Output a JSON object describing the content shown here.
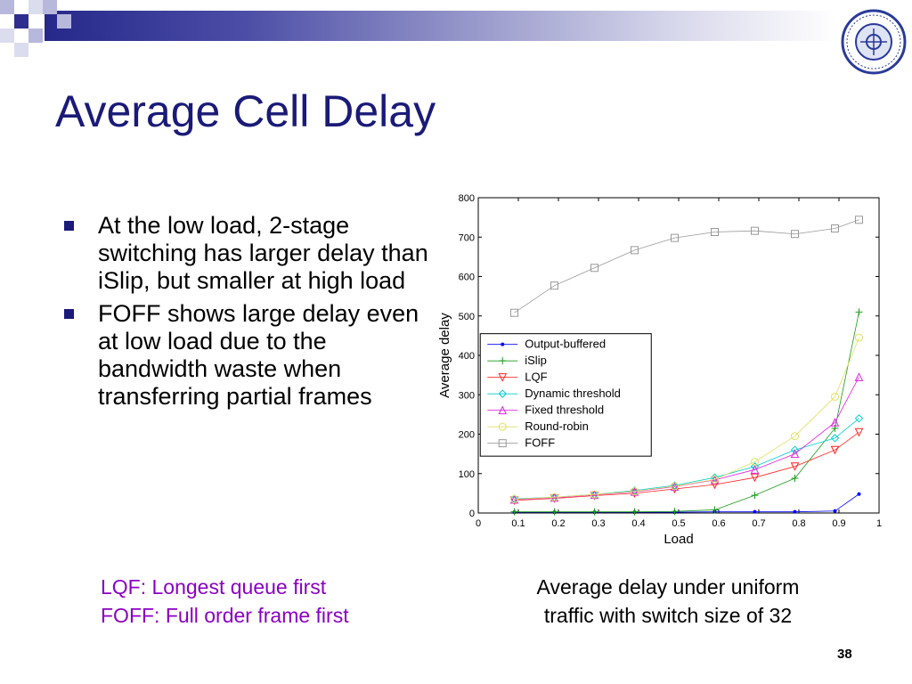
{
  "slide": {
    "title": "Average Cell Delay",
    "bullets": [
      "At the low load, 2-stage switching has larger delay than iSlip, but smaller at high load",
      "FOFF shows large delay even at low load due to the bandwidth waste when transferring partial frames"
    ],
    "abbreviations": [
      "LQF: Longest queue first",
      "FOFF: Full order frame first"
    ],
    "caption": [
      "Average delay under uniform",
      "traffic with switch size of 32"
    ],
    "page_number": "38",
    "accent_color": "#1a1a78",
    "abbrev_color": "#8a00c2",
    "logo_icon": "university-seal-icon"
  },
  "chart_data": {
    "type": "line",
    "xlabel": "Load",
    "ylabel": "Average delay",
    "xlim": [
      0,
      1
    ],
    "ylim": [
      0,
      800
    ],
    "xticks": [
      "0",
      "0.1",
      "0.2",
      "0.3",
      "0.4",
      "0.5",
      "0.6",
      "0.7",
      "0.8",
      "0.9",
      "1"
    ],
    "yticks": [
      "0",
      "100",
      "200",
      "300",
      "400",
      "500",
      "600",
      "700",
      "800"
    ],
    "legend_position": "center-left",
    "grid": false,
    "x": [
      0.09,
      0.19,
      0.29,
      0.39,
      0.49,
      0.59,
      0.69,
      0.79,
      0.89,
      0.95
    ],
    "series": [
      {
        "name": "Output-buffered",
        "color": "#0000ff",
        "marker": "dot",
        "values": [
          2,
          2,
          2,
          2,
          2,
          3,
          3,
          3,
          5,
          48
        ]
      },
      {
        "name": "iSlip",
        "color": "#1a9a1a",
        "marker": "plus",
        "values": [
          3,
          3,
          3,
          3,
          4,
          8,
          45,
          88,
          215,
          510
        ]
      },
      {
        "name": "LQF",
        "color": "#ff2020",
        "marker": "triangle-down",
        "values": [
          32,
          37,
          44,
          50,
          61,
          72,
          90,
          118,
          160,
          205
        ]
      },
      {
        "name": "Dynamic threshold",
        "color": "#00cccc",
        "marker": "diamond",
        "values": [
          36,
          40,
          47,
          57,
          70,
          90,
          118,
          160,
          190,
          240
        ]
      },
      {
        "name": "Fixed threshold",
        "color": "#e020e0",
        "marker": "triangle-up",
        "values": [
          34,
          39,
          46,
          54,
          67,
          84,
          110,
          150,
          230,
          345
        ]
      },
      {
        "name": "Round-robin",
        "color": "#e0e060",
        "marker": "circle",
        "values": [
          35,
          40,
          47,
          55,
          68,
          85,
          130,
          195,
          295,
          445
        ]
      },
      {
        "name": "FOFF",
        "color": "#999999",
        "marker": "square",
        "values": [
          508,
          577,
          622,
          667,
          698,
          713,
          716,
          708,
          722,
          744
        ]
      }
    ]
  }
}
